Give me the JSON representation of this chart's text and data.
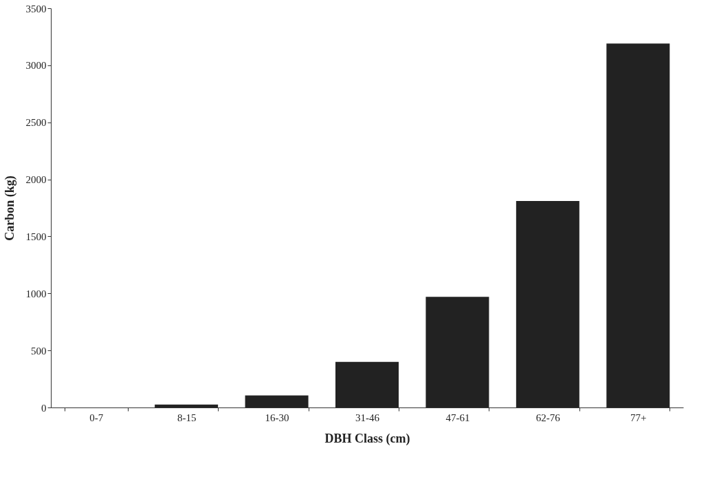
{
  "chart_data": {
    "type": "bar",
    "xlabel": "DBH Class (cm)",
    "ylabel": "Carbon (kg)",
    "categories": [
      "0-7",
      "8-15",
      "16-30",
      "31-46",
      "47-61",
      "62-76",
      "77+"
    ],
    "values": [
      0,
      25,
      105,
      400,
      970,
      1810,
      3190
    ],
    "color": "#222222",
    "ylim": [
      0,
      3500
    ],
    "yticks": [
      0,
      500,
      1000,
      1500,
      2000,
      2500,
      3000,
      3500
    ],
    "grid": false
  }
}
